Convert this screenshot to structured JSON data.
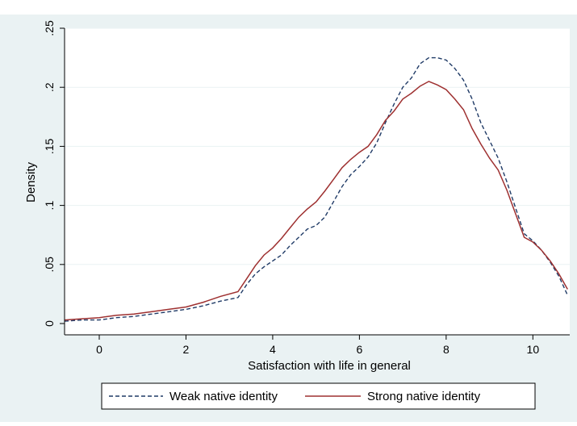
{
  "chart_data": {
    "type": "line",
    "title": "",
    "xlabel": "Satisfaction with life in general",
    "ylabel": "Density",
    "xlim": [
      -0.8,
      10.85
    ],
    "ylim": [
      0,
      0.25
    ],
    "x_ticks": [
      0,
      2,
      4,
      6,
      8,
      10
    ],
    "y_ticks": [
      0,
      0.05,
      0.1,
      0.15,
      0.2,
      0.25
    ],
    "x_tick_labels": [
      "0",
      "2",
      "4",
      "6",
      "8",
      "10"
    ],
    "y_tick_labels": [
      "0",
      ".05",
      ".1",
      ".15",
      ".2",
      ".25"
    ],
    "grid": "horizontal",
    "legend_position": "bottom",
    "series": [
      {
        "name": "Weak native identity",
        "color": "#1f3a66",
        "dash": "dashed",
        "x": [
          -0.8,
          -0.4,
          0.0,
          0.4,
          0.8,
          1.2,
          1.6,
          2.0,
          2.4,
          2.8,
          3.2,
          3.4,
          3.6,
          3.8,
          4.0,
          4.2,
          4.4,
          4.6,
          4.8,
          5.0,
          5.2,
          5.4,
          5.6,
          5.8,
          6.0,
          6.2,
          6.4,
          6.6,
          6.8,
          7.0,
          7.2,
          7.4,
          7.6,
          7.8,
          8.0,
          8.2,
          8.4,
          8.6,
          8.8,
          9.0,
          9.2,
          9.4,
          9.6,
          9.8,
          10.0,
          10.2,
          10.4,
          10.6,
          10.8
        ],
        "y": [
          0.002,
          0.003,
          0.003,
          0.005,
          0.006,
          0.008,
          0.01,
          0.012,
          0.015,
          0.019,
          0.022,
          0.033,
          0.042,
          0.048,
          0.053,
          0.058,
          0.066,
          0.073,
          0.08,
          0.083,
          0.09,
          0.103,
          0.116,
          0.126,
          0.133,
          0.141,
          0.153,
          0.17,
          0.186,
          0.2,
          0.208,
          0.22,
          0.225,
          0.225,
          0.223,
          0.216,
          0.206,
          0.19,
          0.17,
          0.155,
          0.14,
          0.12,
          0.098,
          0.076,
          0.07,
          0.062,
          0.052,
          0.04,
          0.024
        ]
      },
      {
        "name": "Strong native identity",
        "color": "#9e3030",
        "dash": "solid",
        "x": [
          -0.8,
          -0.4,
          0.0,
          0.4,
          0.8,
          1.2,
          1.6,
          2.0,
          2.4,
          2.8,
          3.2,
          3.4,
          3.6,
          3.8,
          4.0,
          4.2,
          4.4,
          4.6,
          4.8,
          5.0,
          5.2,
          5.4,
          5.6,
          5.8,
          6.0,
          6.2,
          6.4,
          6.6,
          6.8,
          7.0,
          7.2,
          7.4,
          7.6,
          7.8,
          8.0,
          8.2,
          8.4,
          8.6,
          8.8,
          9.0,
          9.2,
          9.4,
          9.6,
          9.8,
          10.0,
          10.2,
          10.4,
          10.6,
          10.8
        ],
        "y": [
          0.003,
          0.004,
          0.005,
          0.007,
          0.008,
          0.01,
          0.012,
          0.014,
          0.018,
          0.023,
          0.027,
          0.038,
          0.049,
          0.058,
          0.064,
          0.072,
          0.081,
          0.09,
          0.097,
          0.103,
          0.112,
          0.122,
          0.132,
          0.139,
          0.145,
          0.15,
          0.16,
          0.172,
          0.18,
          0.19,
          0.195,
          0.201,
          0.205,
          0.202,
          0.198,
          0.19,
          0.181,
          0.165,
          0.152,
          0.14,
          0.13,
          0.113,
          0.093,
          0.073,
          0.069,
          0.062,
          0.053,
          0.042,
          0.029
        ]
      }
    ]
  }
}
